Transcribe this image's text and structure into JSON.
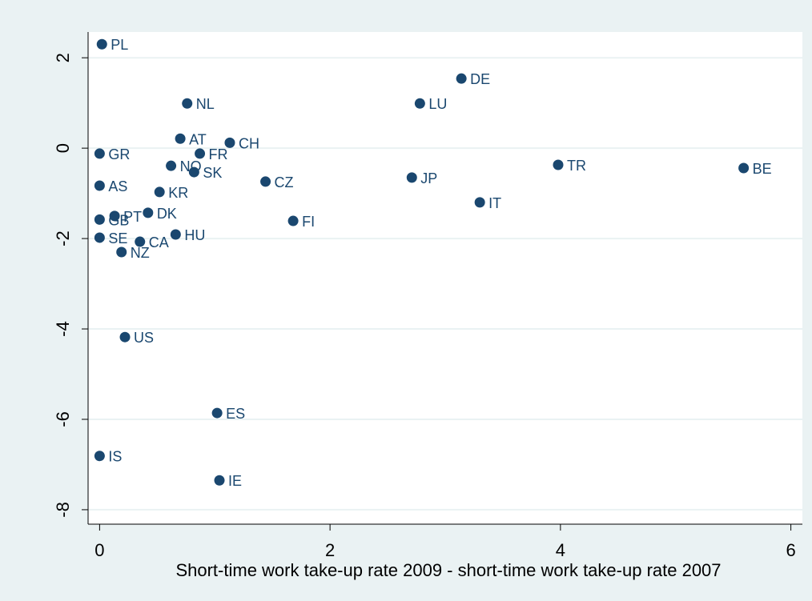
{
  "chart_data": {
    "type": "scatter",
    "x_label": "Short-time work take-up rate 2009 - short-time work take-up rate 2007",
    "labels": [
      "PL",
      "DE",
      "LU",
      "NL",
      "AT",
      "CH",
      "FR",
      "GR",
      "NO",
      "SK",
      "CZ",
      "JP",
      "TR",
      "BE",
      "AS",
      "KR",
      "IT",
      "DK",
      "PT",
      "GB",
      "FI",
      "HU",
      "SE",
      "CA",
      "NZ",
      "US",
      "ES",
      "IS",
      "IE"
    ],
    "x": [
      0.02,
      3.14,
      2.78,
      0.76,
      0.7,
      1.13,
      0.87,
      0,
      0.62,
      0.82,
      1.44,
      2.71,
      3.98,
      5.59,
      0,
      0.52,
      3.3,
      0.42,
      0.13,
      0,
      1.68,
      0.66,
      0,
      0.35,
      0.19,
      0.22,
      1.02,
      0,
      1.04
    ],
    "values": [
      2.3,
      1.54,
      0.99,
      0.99,
      0.21,
      0.12,
      -0.12,
      -0.12,
      -0.39,
      -0.53,
      -0.74,
      -0.65,
      -0.37,
      -0.44,
      -0.83,
      -0.97,
      -1.2,
      -1.43,
      -1.5,
      -1.58,
      -1.61,
      -1.91,
      -1.98,
      -2.07,
      -2.3,
      -4.18,
      -5.86,
      -6.81,
      -7.35
    ],
    "color": "#1a476f",
    "xlim": [
      -0.1,
      6.1
    ],
    "xticks": [
      0,
      2,
      4,
      6
    ],
    "ylim": [
      -8.32,
      2.57
    ],
    "yticks": [
      2,
      0,
      -2,
      -4,
      -6,
      -8
    ],
    "grid": true
  }
}
